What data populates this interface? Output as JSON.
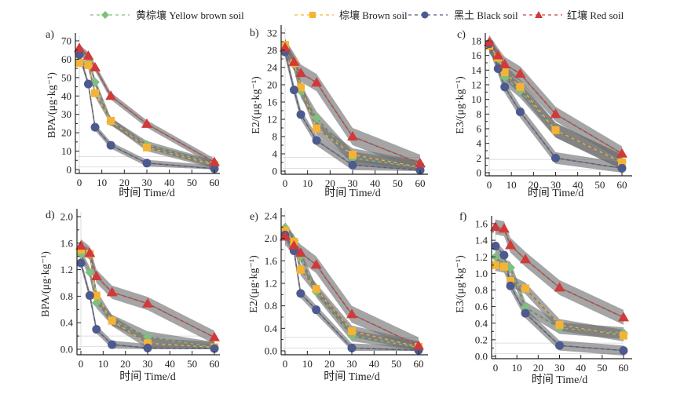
{
  "legend": [
    {
      "label": "黄棕壤 Yellow brown soil",
      "color": "#7fbf7f",
      "marker": "diamond"
    },
    {
      "label": "棕壤 Brown soil",
      "color": "#f5b335",
      "marker": "square"
    },
    {
      "label": "黑土 Black soil",
      "color": "#4d5a8f",
      "marker": "circle"
    },
    {
      "label": "红壤 Red soil",
      "color": "#d03a3a",
      "marker": "triangle"
    }
  ],
  "band_color": "#808080",
  "chart_data": [
    {
      "type": "line",
      "panel_label": "a)",
      "title": "",
      "xlabel": "时间 Time/d",
      "ylabel": "BPA/(μg·kg⁻¹)",
      "x": [
        0,
        4,
        7,
        14,
        30,
        60
      ],
      "xlim": [
        0,
        60
      ],
      "xticks": [
        0,
        10,
        20,
        30,
        40,
        50,
        60
      ],
      "ylim": [
        0,
        70
      ],
      "yticks": [
        0,
        10,
        20,
        30,
        40,
        50,
        60,
        70
      ],
      "grid": false,
      "legend": "top",
      "series": [
        {
          "name": "黄棕壤 Yellow brown soil",
          "values": [
            64.5,
            60.5,
            47.5,
            26.0,
            13.5,
            3.0
          ],
          "band": 2.0
        },
        {
          "name": "棕壤 Brown soil",
          "values": [
            58.0,
            56.8,
            41.5,
            26.5,
            12.0,
            2.5
          ],
          "band": 2.0
        },
        {
          "name": "黑土 Black soil",
          "values": [
            62.5,
            46.5,
            23.0,
            13.2,
            3.5,
            0.5
          ],
          "band": 1.8
        },
        {
          "name": "红壤 Red soil",
          "values": [
            66.0,
            61.8,
            55.5,
            40.0,
            24.8,
            4.0
          ],
          "band": 2.0
        }
      ]
    },
    {
      "type": "line",
      "panel_label": "b)",
      "title": "",
      "xlabel": "时间 Time/d",
      "ylabel": "E2/(μg·kg⁻¹)",
      "x": [
        0,
        4,
        7,
        14,
        30,
        60
      ],
      "xlim": [
        0,
        60
      ],
      "xticks": [
        0,
        10,
        20,
        30,
        40,
        50,
        60
      ],
      "ylim": [
        0,
        32
      ],
      "yticks": [
        0,
        4,
        8,
        12,
        16,
        20,
        24,
        28,
        32
      ],
      "grid": false,
      "legend": "top",
      "series": [
        {
          "name": "黄棕壤 Yellow brown soil",
          "values": [
            28.5,
            24.8,
            18.5,
            12.3,
            3.0,
            0.8
          ],
          "band": 1.5
        },
        {
          "name": "棕壤 Brown soil",
          "values": [
            29.2,
            25.0,
            19.4,
            9.9,
            3.8,
            0.9
          ],
          "band": 1.5
        },
        {
          "name": "黑土 Black soil",
          "values": [
            27.6,
            18.8,
            13.1,
            7.1,
            1.4,
            0.2
          ],
          "band": 1.2
        },
        {
          "name": "红壤 Red soil",
          "values": [
            28.6,
            25.3,
            22.7,
            20.5,
            8.0,
            1.8
          ],
          "band": 2.0
        }
      ]
    },
    {
      "type": "line",
      "panel_label": "c)",
      "title": "",
      "xlabel": "时间 Time/d",
      "ylabel": "E3/(μg·kg⁻¹)",
      "x": [
        0,
        4,
        7,
        14,
        30,
        60
      ],
      "xlim": [
        0,
        60
      ],
      "xticks": [
        0,
        10,
        20,
        30,
        40,
        50,
        60
      ],
      "ylim": [
        0,
        18
      ],
      "yticks": [
        0,
        2,
        4,
        6,
        8,
        10,
        12,
        14,
        16,
        18
      ],
      "grid": false,
      "legend": "top",
      "series": [
        {
          "name": "黄棕壤 Yellow brown soil",
          "values": [
            17.4,
            15.6,
            13.0,
            11.2,
            5.8,
            1.5
          ],
          "band": 1.0
        },
        {
          "name": "棕壤 Brown soil",
          "values": [
            17.3,
            15.7,
            13.7,
            11.7,
            5.8,
            1.4
          ],
          "band": 1.0
        },
        {
          "name": "黑土 Black soil",
          "values": [
            17.6,
            14.2,
            11.7,
            8.3,
            2.0,
            0.6
          ],
          "band": 0.8
        },
        {
          "name": "红壤 Red soil",
          "values": [
            17.8,
            16.0,
            14.8,
            13.5,
            8.0,
            2.6
          ],
          "band": 1.0
        }
      ]
    },
    {
      "type": "line",
      "panel_label": "d)",
      "title": "",
      "xlabel": "时间 Time/d",
      "ylabel": "BPA/(μg·kg⁻¹)",
      "x": [
        0,
        4,
        7,
        14,
        30,
        60
      ],
      "xlim": [
        0,
        60
      ],
      "xticks": [
        0,
        10,
        20,
        30,
        40,
        50,
        60
      ],
      "ylim": [
        0,
        2.0
      ],
      "yticks": [
        0.0,
        0.4,
        0.8,
        1.2,
        1.6,
        2.0
      ],
      "grid": false,
      "legend": "top",
      "series": [
        {
          "name": "黄棕壤 Yellow brown soil",
          "values": [
            1.43,
            1.16,
            0.7,
            0.44,
            0.19,
            0.03
          ],
          "band": 0.08
        },
        {
          "name": "棕壤 Brown soil",
          "values": [
            1.5,
            1.44,
            0.81,
            0.43,
            0.09,
            0.03
          ],
          "band": 0.08
        },
        {
          "name": "黑土 Black soil",
          "values": [
            1.3,
            0.81,
            0.3,
            0.07,
            0.02,
            0.01
          ],
          "band": 0.06
        },
        {
          "name": "红壤 Red soil",
          "values": [
            1.56,
            1.45,
            1.1,
            0.86,
            0.69,
            0.18
          ],
          "band": 0.1
        }
      ]
    },
    {
      "type": "line",
      "panel_label": "e)",
      "title": "",
      "xlabel": "时间 Time/d",
      "ylabel": "E2/(μg·kg⁻¹)",
      "x": [
        0,
        4,
        7,
        14,
        30,
        60
      ],
      "xlim": [
        0,
        60
      ],
      "xticks": [
        0,
        10,
        20,
        30,
        40,
        50,
        60
      ],
      "ylim": [
        0,
        2.4
      ],
      "yticks": [
        0.0,
        0.4,
        0.8,
        1.2,
        1.6,
        2.0,
        2.4
      ],
      "grid": false,
      "legend": "top",
      "series": [
        {
          "name": "黄棕壤 Yellow brown soil",
          "values": [
            2.19,
            1.96,
            1.68,
            1.05,
            0.27,
            0.06
          ],
          "band": 0.1
        },
        {
          "name": "棕壤 Brown soil",
          "values": [
            2.14,
            1.94,
            1.44,
            1.1,
            0.35,
            0.07
          ],
          "band": 0.1
        },
        {
          "name": "黑土 Black soil",
          "values": [
            2.06,
            1.78,
            1.02,
            0.73,
            0.05,
            0.01
          ],
          "band": 0.08
        },
        {
          "name": "红壤 Red soil",
          "values": [
            2.03,
            1.87,
            1.74,
            1.53,
            0.65,
            0.09
          ],
          "band": 0.15
        }
      ]
    },
    {
      "type": "line",
      "panel_label": "f)",
      "title": "",
      "xlabel": "时间 Time/d",
      "ylabel": "E3/(μg·kg⁻¹)",
      "x": [
        0,
        4,
        7,
        14,
        30,
        60
      ],
      "xlim": [
        0,
        60
      ],
      "xticks": [
        0,
        10,
        20,
        30,
        40,
        50,
        60
      ],
      "ylim": [
        0,
        1.6
      ],
      "yticks": [
        0.0,
        0.2,
        0.4,
        0.6,
        0.8,
        1.0,
        1.2,
        1.4,
        1.6
      ],
      "grid": false,
      "legend": "top",
      "series": [
        {
          "name": "黄棕壤 Yellow brown soil",
          "values": [
            1.2,
            1.1,
            1.07,
            0.59,
            0.34,
            0.28
          ],
          "band": 0.07
        },
        {
          "name": "棕壤 Brown soil",
          "values": [
            1.1,
            1.08,
            0.91,
            0.82,
            0.38,
            0.25
          ],
          "band": 0.07
        },
        {
          "name": "黑土 Black soil",
          "values": [
            1.33,
            1.22,
            0.85,
            0.52,
            0.13,
            0.07
          ],
          "band": 0.06
        },
        {
          "name": "红壤 Red soil",
          "values": [
            1.56,
            1.54,
            1.34,
            1.17,
            0.83,
            0.47
          ],
          "band": 0.09
        }
      ]
    }
  ]
}
